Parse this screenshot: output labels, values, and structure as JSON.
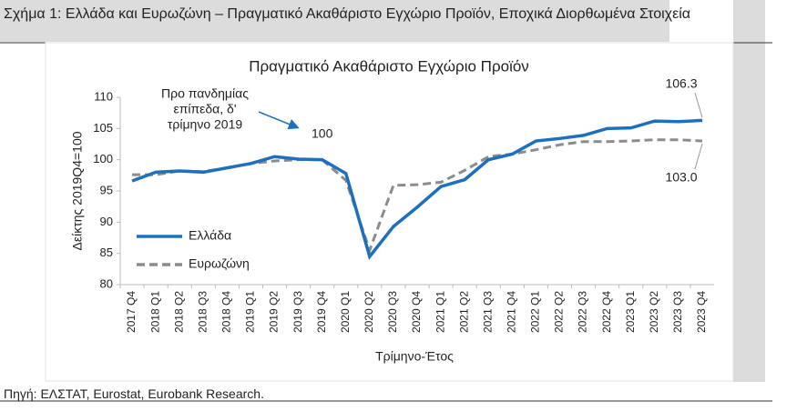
{
  "header": {
    "title": "Σχήμα 1: Ελλάδα και Ευρωζώνη – Πραγματικό Ακαθάριστο Εγχώριο Προϊόν, Εποχικά Διορθωμένα Στοιχεία"
  },
  "chart_data": {
    "type": "line",
    "title": "Πραγματικό Ακαθάριστο Εγχώριο Προϊόν",
    "x_label": "Τρίμηνο-Έτος",
    "y_label": "Δείκτης 2019Q4=100",
    "categories": [
      "2017 Q4",
      "2018 Q1",
      "2018 Q2",
      "2018 Q3",
      "2018 Q4",
      "2019 Q1",
      "2019 Q2",
      "2019 Q3",
      "2019 Q4",
      "2020 Q1",
      "2020 Q2",
      "2020 Q3",
      "2020 Q4",
      "2021 Q1",
      "2021 Q2",
      "2021 Q3",
      "2021 Q4",
      "2022 Q1",
      "2022 Q2",
      "2022 Q3",
      "2022 Q4",
      "2023 Q1",
      "2023 Q2",
      "2023 Q3",
      "2023 Q4"
    ],
    "series": [
      {
        "name": "Ελλάδα",
        "color": "#1f6fbf",
        "dashed": false,
        "values": [
          96.6,
          98.0,
          98.2,
          98.0,
          98.7,
          99.4,
          100.5,
          100.1,
          100.0,
          97.8,
          84.5,
          89.3,
          92.4,
          95.7,
          96.8,
          100.0,
          100.9,
          103.0,
          103.4,
          103.9,
          105.0,
          105.1,
          106.2,
          106.1,
          106.3
        ]
      },
      {
        "name": "Ευρωζώνη",
        "color": "#8c8c8c",
        "dashed": true,
        "values": [
          97.6,
          97.6,
          98.2,
          98.1,
          98.7,
          99.4,
          99.8,
          100.0,
          100.0,
          96.7,
          85.5,
          95.9,
          96.0,
          96.4,
          98.3,
          100.5,
          100.9,
          101.6,
          102.4,
          102.9,
          102.9,
          103.0,
          103.2,
          103.2,
          103.0
        ]
      }
    ],
    "ylim": [
      80,
      110
    ],
    "yticks": [
      80,
      85,
      90,
      95,
      100,
      105,
      110
    ],
    "annotation": [
      "Προ πανδημίας",
      "επίπεδα, δ'",
      "τρίμηνο 2019"
    ],
    "point_labels": [
      "100",
      "106.3",
      "103.0"
    ]
  },
  "footer": {
    "source": "Πηγή: ΕΛΣΤΑΤ, Eurostat, Eurobank Research."
  }
}
